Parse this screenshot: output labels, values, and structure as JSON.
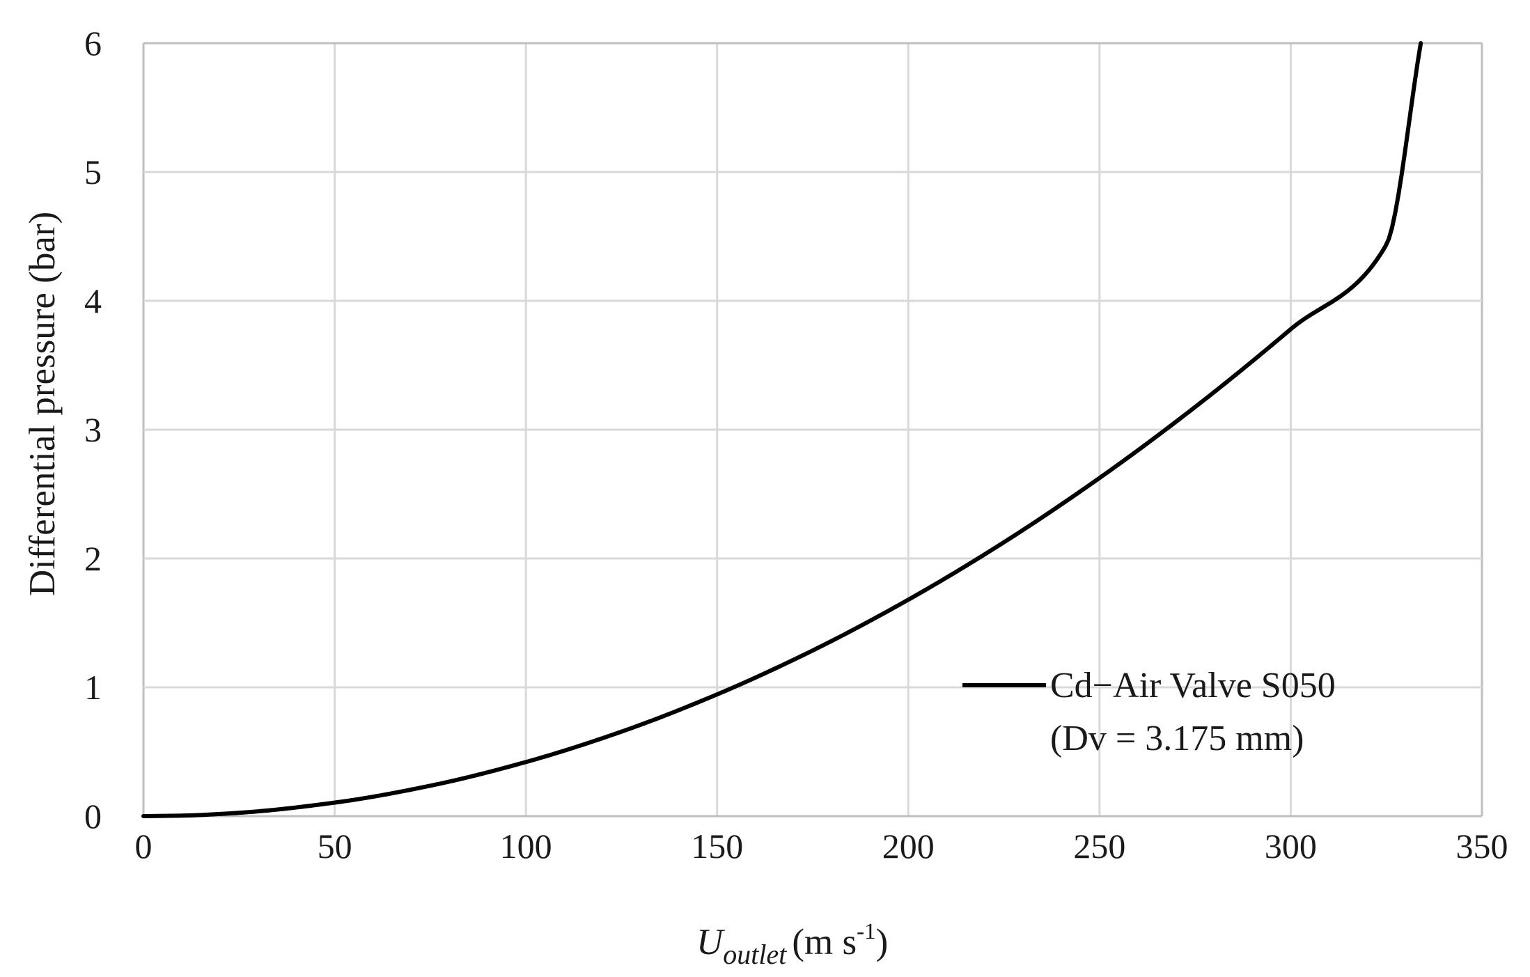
{
  "chart_data": {
    "type": "line",
    "xlim": [
      0,
      350
    ],
    "ylim": [
      0,
      6
    ],
    "x_ticks": [
      "0",
      "50",
      "100",
      "150",
      "200",
      "250",
      "300",
      "350"
    ],
    "y_ticks": [
      "0",
      "1",
      "2",
      "3",
      "4",
      "5",
      "6"
    ],
    "xlabel": {
      "symbol": "U",
      "subscript": "outlet",
      "units_prefix": "(m s",
      "units_exponent": "-1",
      "units_suffix": ")"
    },
    "ylabel": "Differential pressure (bar)",
    "grid": true,
    "legend_position": "right",
    "series": [
      {
        "name": "Cd−Air Valve S050",
        "name_line2": "(Dv = 3.175 mm)",
        "color": "#000000",
        "x": [
          0,
          10,
          25,
          50,
          75,
          100,
          125,
          150,
          175,
          200,
          225,
          250,
          275,
          300,
          325,
          334
        ],
        "y": [
          0,
          0.004,
          0.026,
          0.105,
          0.236,
          0.42,
          0.656,
          0.945,
          1.286,
          1.68,
          2.126,
          2.625,
          3.176,
          3.78,
          4.436,
          6.0
        ]
      }
    ]
  },
  "colors": {
    "grid": "#d9d9d9",
    "axis": "#bfbfbf",
    "text": "#1a1a1a",
    "line": "#000000"
  }
}
